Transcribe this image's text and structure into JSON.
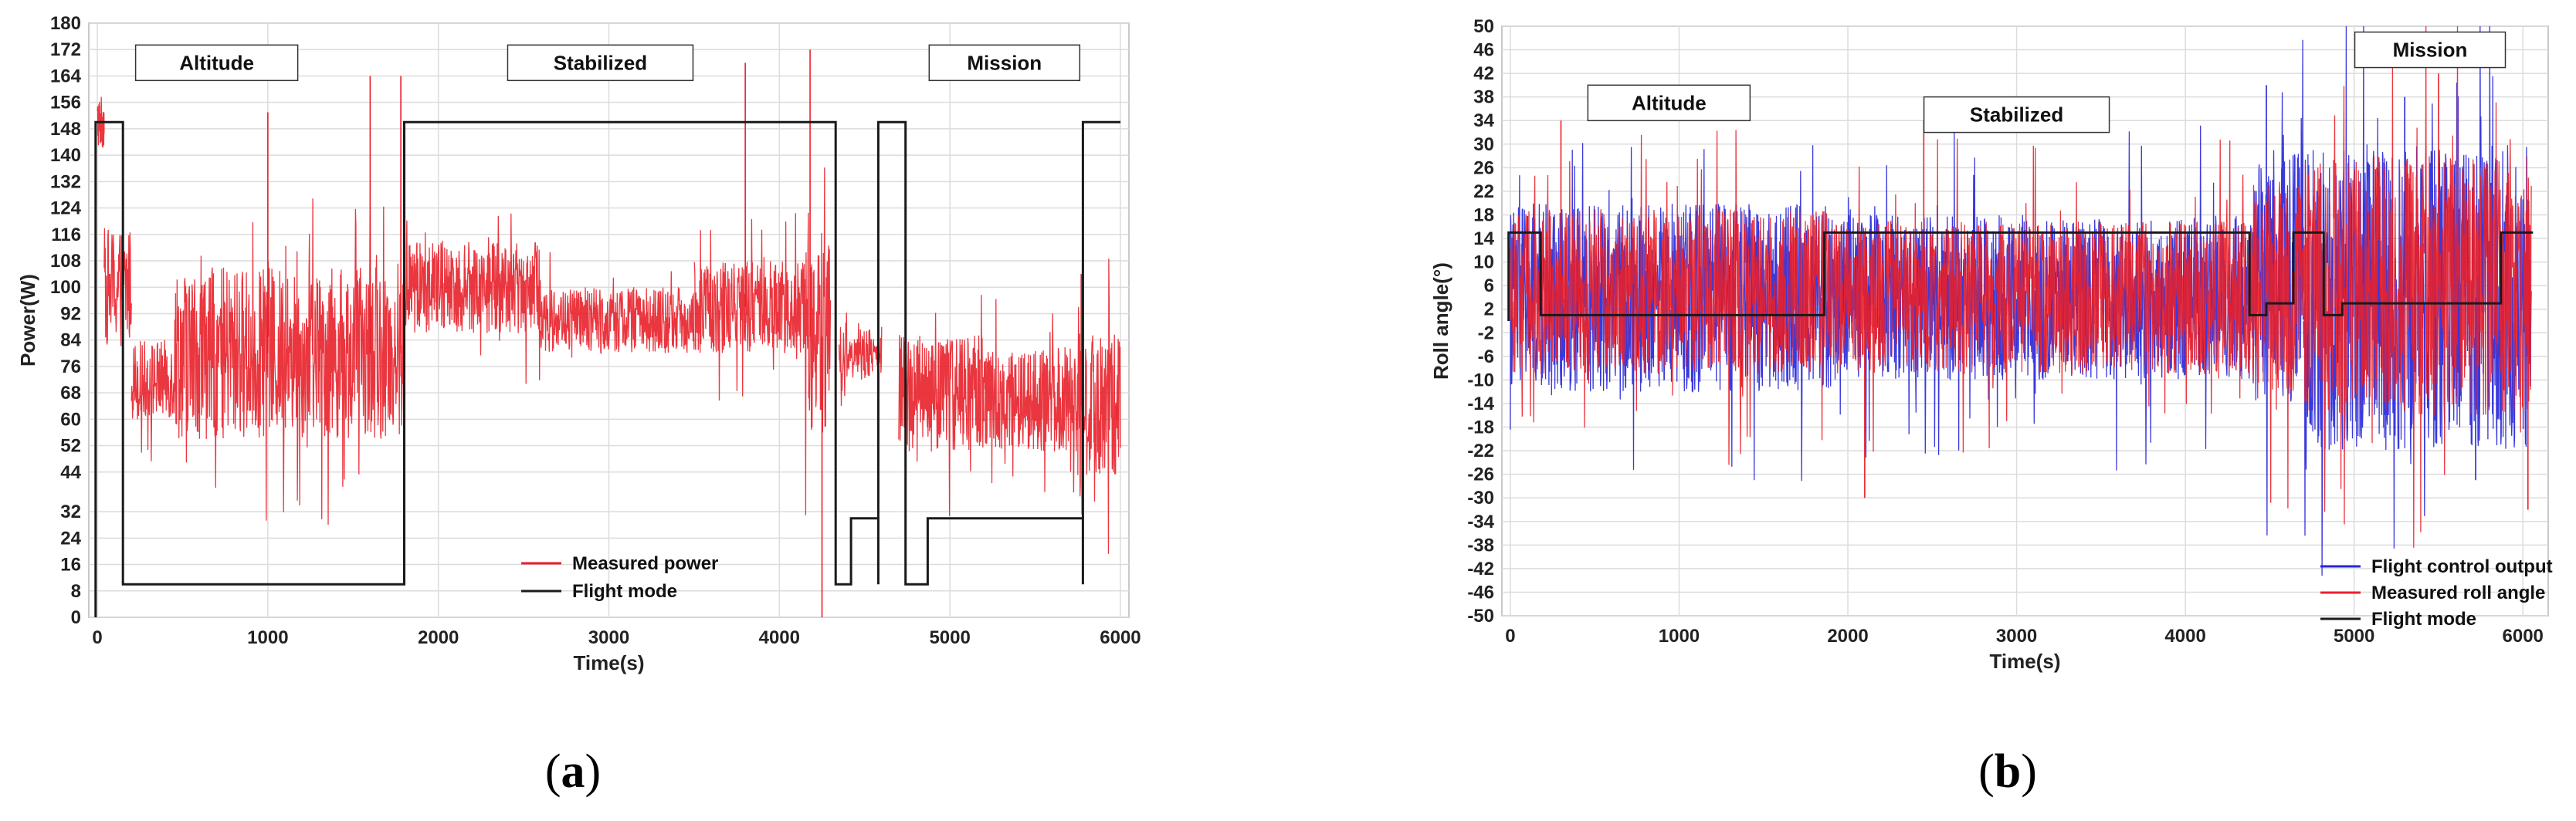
{
  "chart_data": [
    {
      "type": "line",
      "panel_caption": {
        "open": "(",
        "letter": "a",
        "close": ")"
      },
      "xlabel": "Time(s)",
      "ylabel": "Power(W)",
      "xlim": [
        -50,
        6050
      ],
      "ylim": [
        0,
        180
      ],
      "xticks": [
        0,
        1000,
        2000,
        3000,
        4000,
        5000,
        6000
      ],
      "yticks": [
        0,
        8,
        16,
        24,
        32,
        44,
        52,
        60,
        68,
        76,
        84,
        92,
        100,
        108,
        116,
        124,
        132,
        140,
        148,
        156,
        164,
        172,
        180
      ],
      "grid": true,
      "legend_position": "lower-right",
      "phase_labels": [
        {
          "text": "Altitude",
          "x": 700,
          "y": 168
        },
        {
          "text": "Stabilized",
          "x": 2950,
          "y": 168
        },
        {
          "text": "Mission",
          "x": 5320,
          "y": 168
        }
      ],
      "series": [
        {
          "name": "Measured power",
          "color": "#e8202a",
          "kind": "noisy",
          "segments": [
            {
              "x0": 0,
              "x1": 40,
              "mean": 150,
              "amp": 8
            },
            {
              "x0": 40,
              "x1": 200,
              "mean": 100,
              "amp": 18
            },
            {
              "x0": 200,
              "x1": 450,
              "mean": 72,
              "amp": 12
            },
            {
              "x0": 450,
              "x1": 1800,
              "mean": 80,
              "amp": 26
            },
            {
              "x0": 1800,
              "x1": 2600,
              "mean": 100,
              "amp": 14
            },
            {
              "x0": 2600,
              "x1": 3500,
              "mean": 90,
              "amp": 10
            },
            {
              "x0": 3500,
              "x1": 4150,
              "mean": 94,
              "amp": 14
            },
            {
              "x0": 4150,
              "x1": 4300,
              "mean": 85,
              "amp": 30
            },
            {
              "x0": 4350,
              "x1": 4600,
              "mean": 80,
              "amp": 8
            },
            {
              "x0": 4700,
              "x1": 5200,
              "mean": 68,
              "amp": 18
            },
            {
              "x0": 5200,
              "x1": 5750,
              "mean": 66,
              "amp": 16
            },
            {
              "x0": 5750,
              "x1": 6000,
              "mean": 64,
              "amp": 22
            }
          ],
          "spikes": [
            {
              "x": 1000,
              "y": 153
            },
            {
              "x": 1600,
              "y": 164
            },
            {
              "x": 1780,
              "y": 164
            },
            {
              "x": 3800,
              "y": 168
            },
            {
              "x": 4180,
              "y": 172
            },
            {
              "x": 4250,
              "y": 0
            },
            {
              "x": 5770,
              "y": 104
            },
            {
              "x": 5980,
              "y": 60
            }
          ]
        },
        {
          "name": "Flight mode",
          "color": "#1a1a1a",
          "kind": "step",
          "points": [
            [
              -10,
              0
            ],
            [
              -10,
              150
            ],
            [
              150,
              150
            ],
            [
              150,
              10
            ],
            [
              1800,
              10
            ],
            [
              1800,
              150
            ],
            [
              4330,
              150
            ],
            [
              4330,
              10
            ],
            [
              4420,
              10
            ],
            [
              4420,
              30
            ],
            [
              4580,
              30
            ],
            [
              4580,
              10
            ],
            [
              4580,
              150
            ],
            [
              4740,
              150
            ],
            [
              4740,
              10
            ],
            [
              4870,
              10
            ],
            [
              4870,
              30
            ],
            [
              5780,
              30
            ],
            [
              5780,
              10
            ],
            [
              5780,
              150
            ],
            [
              6000,
              150
            ]
          ]
        }
      ]
    },
    {
      "type": "line",
      "panel_caption": {
        "open": "(",
        "letter": "b",
        "close": ")"
      },
      "xlabel": "Time(s)",
      "ylabel": "Roll angle(°)",
      "xlim": [
        -50,
        6150
      ],
      "ylim": [
        -50,
        50
      ],
      "xticks": [
        0,
        1000,
        2000,
        3000,
        4000,
        5000,
        6000
      ],
      "yticks": [
        50,
        46,
        42,
        38,
        34,
        30,
        26,
        22,
        18,
        14,
        10,
        6,
        2,
        -2,
        -6,
        -10,
        -14,
        -18,
        -22,
        -26,
        -30,
        -34,
        -38,
        -42,
        -46,
        -50
      ],
      "grid": true,
      "legend_position": "lower-right",
      "phase_labels": [
        {
          "text": "Altitude",
          "x": 940,
          "y": 37
        },
        {
          "text": "Stabilized",
          "x": 3000,
          "y": 35
        },
        {
          "text": "Mission",
          "x": 5450,
          "y": 46
        }
      ],
      "series": [
        {
          "name": "Flight control output",
          "color": "#2424d8",
          "kind": "noisy",
          "segments": [
            {
              "x0": 0,
              "x1": 1900,
              "mean": 4,
              "amp": 16
            },
            {
              "x0": 1900,
              "x1": 4400,
              "mean": 4,
              "amp": 14
            },
            {
              "x0": 4400,
              "x1": 4700,
              "mean": 8,
              "amp": 22
            },
            {
              "x0": 4700,
              "x1": 6050,
              "mean": 4,
              "amp": 26
            }
          ],
          "spikes": [
            {
              "x": 4480,
              "y": 40
            },
            {
              "x": 5720,
              "y": -27
            },
            {
              "x": 5300,
              "y": 38
            }
          ]
        },
        {
          "name": "Measured roll angle",
          "color": "#e8202a",
          "kind": "noisy",
          "segments": [
            {
              "x0": 0,
              "x1": 1900,
              "mean": 5,
              "amp": 14
            },
            {
              "x0": 1900,
              "x1": 4400,
              "mean": 4,
              "amp": 13
            },
            {
              "x0": 4400,
              "x1": 4700,
              "mean": 6,
              "amp": 18
            },
            {
              "x0": 4700,
              "x1": 6050,
              "mean": 6,
              "amp": 22
            }
          ],
          "spikes": [
            {
              "x": 300,
              "y": 34
            },
            {
              "x": 2100,
              "y": -30
            },
            {
              "x": 2450,
              "y": 34
            },
            {
              "x": 5500,
              "y": 42
            },
            {
              "x": 6030,
              "y": -32
            }
          ]
        },
        {
          "name": "Flight mode",
          "color": "#1a1a1a",
          "kind": "step",
          "points": [
            [
              -10,
              0
            ],
            [
              -10,
              15
            ],
            [
              180,
              15
            ],
            [
              180,
              1
            ],
            [
              1860,
              1
            ],
            [
              1860,
              15
            ],
            [
              4380,
              15
            ],
            [
              4380,
              1
            ],
            [
              4480,
              1
            ],
            [
              4480,
              3
            ],
            [
              4640,
              3
            ],
            [
              4640,
              15
            ],
            [
              4820,
              15
            ],
            [
              4820,
              1
            ],
            [
              4930,
              1
            ],
            [
              4930,
              3
            ],
            [
              5870,
              3
            ],
            [
              5870,
              15
            ],
            [
              6060,
              15
            ]
          ]
        }
      ]
    }
  ]
}
